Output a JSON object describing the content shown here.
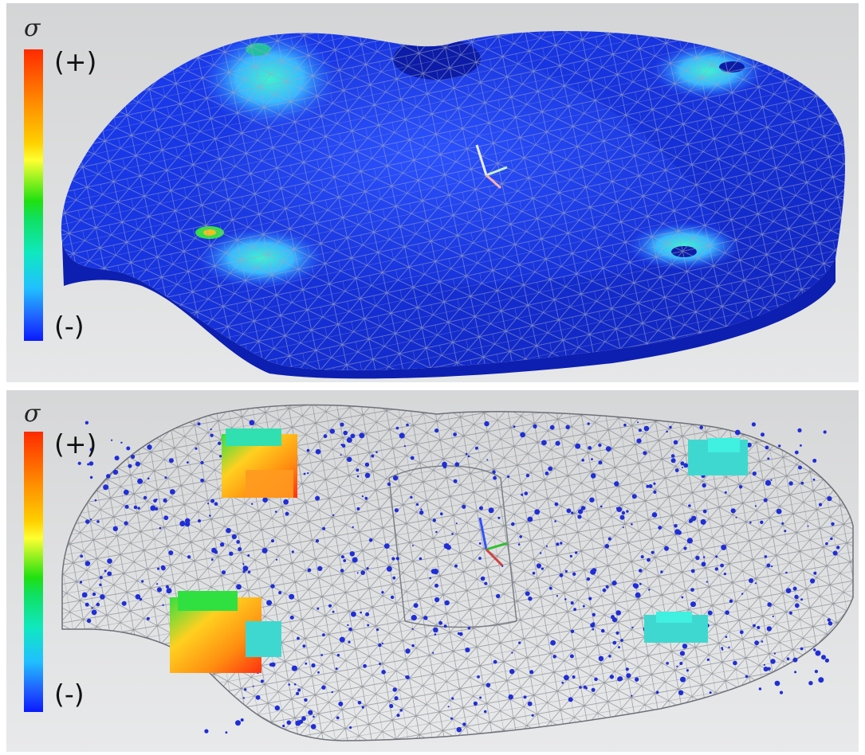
{
  "figure": {
    "top_panel": {
      "legend_symbol": "σ",
      "legend_max": "(+)",
      "legend_min": "(-)"
    },
    "bottom_panel": {
      "legend_symbol": "σ",
      "legend_max": "(+)",
      "legend_min": "(-)"
    }
  },
  "colors": {
    "background": "#d9dadb",
    "solid_body": "#1730e0",
    "mesh_line": "#9a9ea8",
    "wire_mesh": "#7f838a",
    "point_cloud": "#1f2ed6",
    "hotspot_low": "#3fd8d0",
    "hotspot_high": "#ff8c10",
    "hotspot_peak": "#ff2a10",
    "hotspot_mid": "#30e040"
  }
}
